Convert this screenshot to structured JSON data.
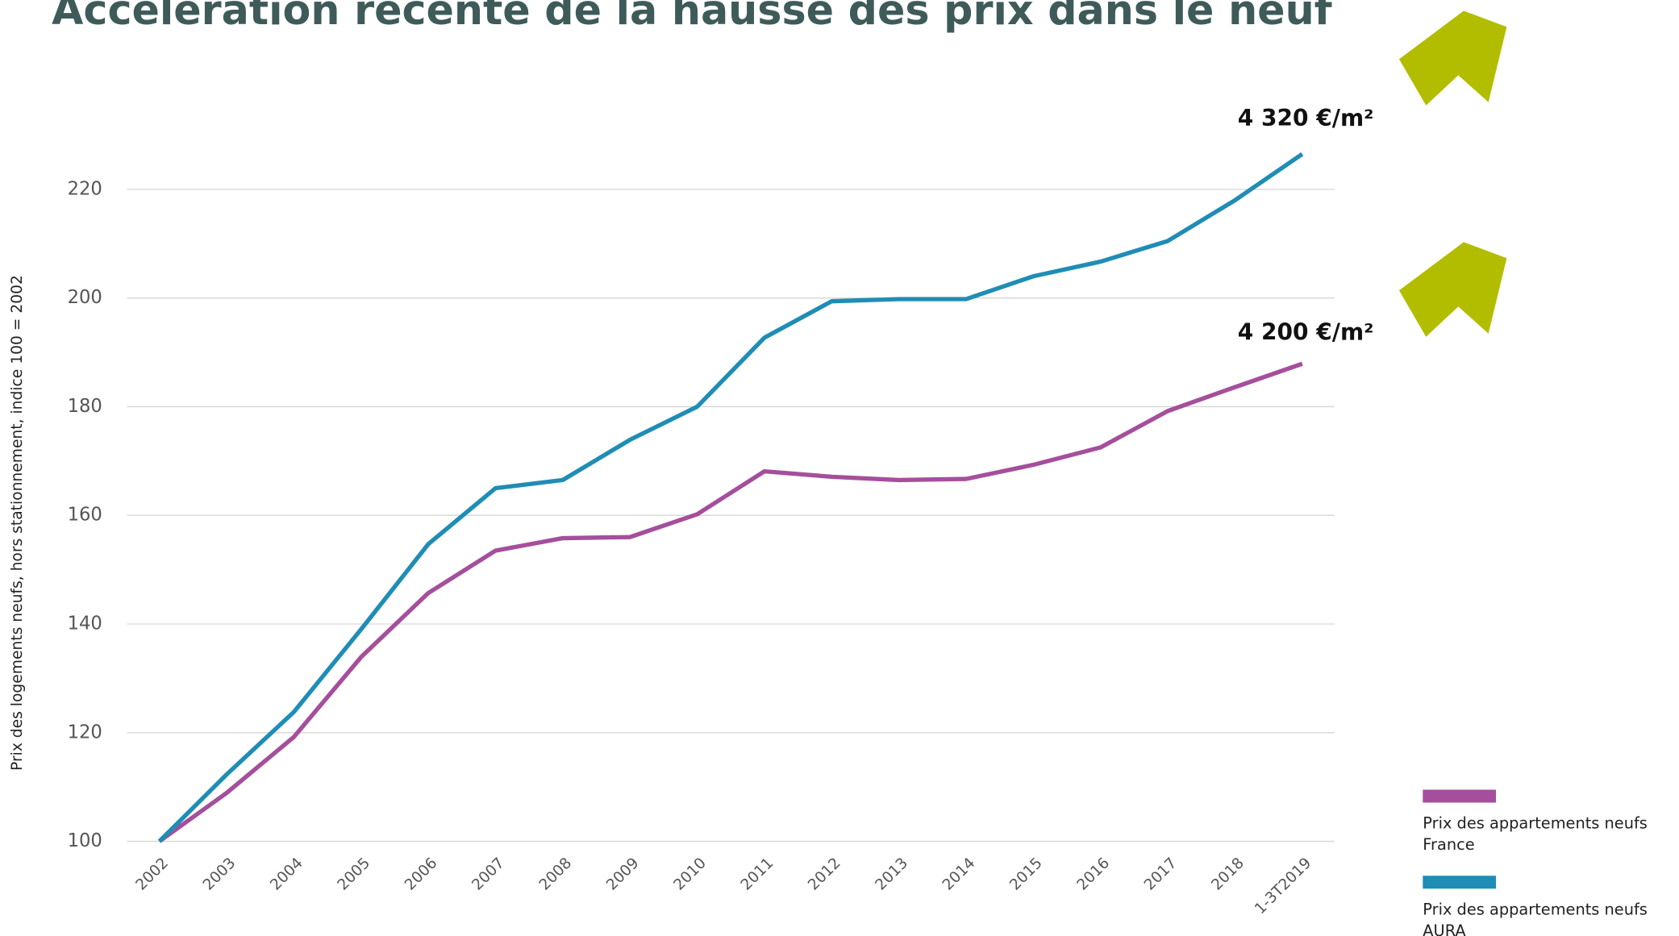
{
  "chart_data": {
    "type": "line",
    "title": "Accélération récente de la hausse des prix dans le neuf",
    "y_label": "Prix des logements neufs, hors stationnement, indice 100 = 2002",
    "categories": [
      "2002",
      "2003",
      "2004",
      "2005",
      "2006",
      "2007",
      "2008",
      "2009",
      "2010",
      "2011",
      "2012",
      "2013",
      "2014",
      "2015",
      "2016",
      "2017",
      "2018",
      "1-3T2019"
    ],
    "series": [
      {
        "name": "Prix des appartements neufs France",
        "color": "#a54f9c",
        "values": [
          100,
          108.9,
          119.2,
          133.9,
          145.7,
          153.5,
          155.8,
          156,
          160.2,
          168.1,
          167.1,
          166.5,
          166.7,
          169.3,
          172.5,
          179.2,
          183.6,
          187.9
        ]
      },
      {
        "name": "Prix des appartements neufs AURA",
        "color": "#1f8db5",
        "values": [
          100,
          112.3,
          123.8,
          139,
          154.7,
          165,
          166.5,
          173.9,
          180,
          192.7,
          199.4,
          199.8,
          199.8,
          204,
          206.7,
          210.5,
          218,
          226.5
        ]
      }
    ],
    "annotations": [
      "4 320 €/m²",
      "4 200 €/m²"
    ],
    "ylim": [
      100,
      230
    ],
    "yticks": [
      100,
      120,
      140,
      160,
      180,
      200,
      220
    ],
    "grid": true
  }
}
